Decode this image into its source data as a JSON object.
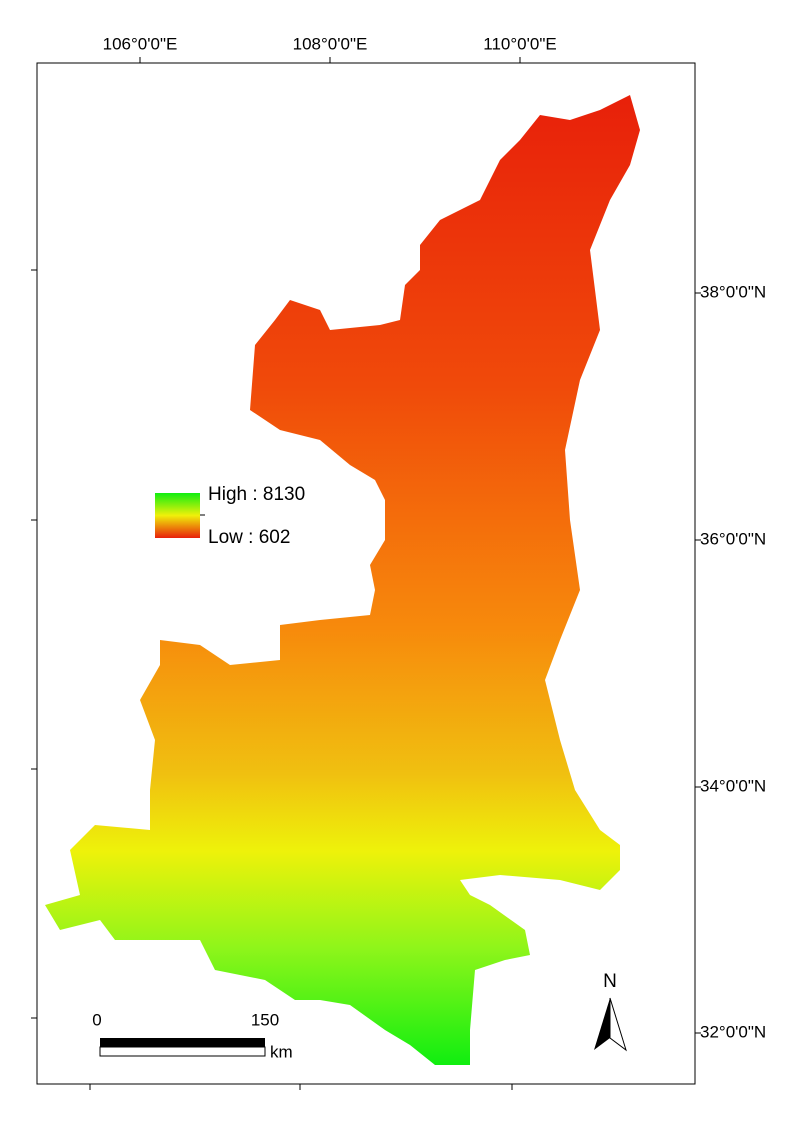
{
  "map": {
    "top_labels": [
      "106°0'0\"E",
      "108°0'0\"E",
      "110°0'0\"E"
    ],
    "right_labels": [
      "38°0'0\"N",
      "36°0'0\"N",
      "34°0'0\"N",
      "32°0'0\"N"
    ],
    "legend": {
      "high": "High : 8130",
      "low": "Low : 602"
    },
    "scale": {
      "start": "0",
      "end": "150",
      "unit": "km"
    },
    "north": "N"
  }
}
